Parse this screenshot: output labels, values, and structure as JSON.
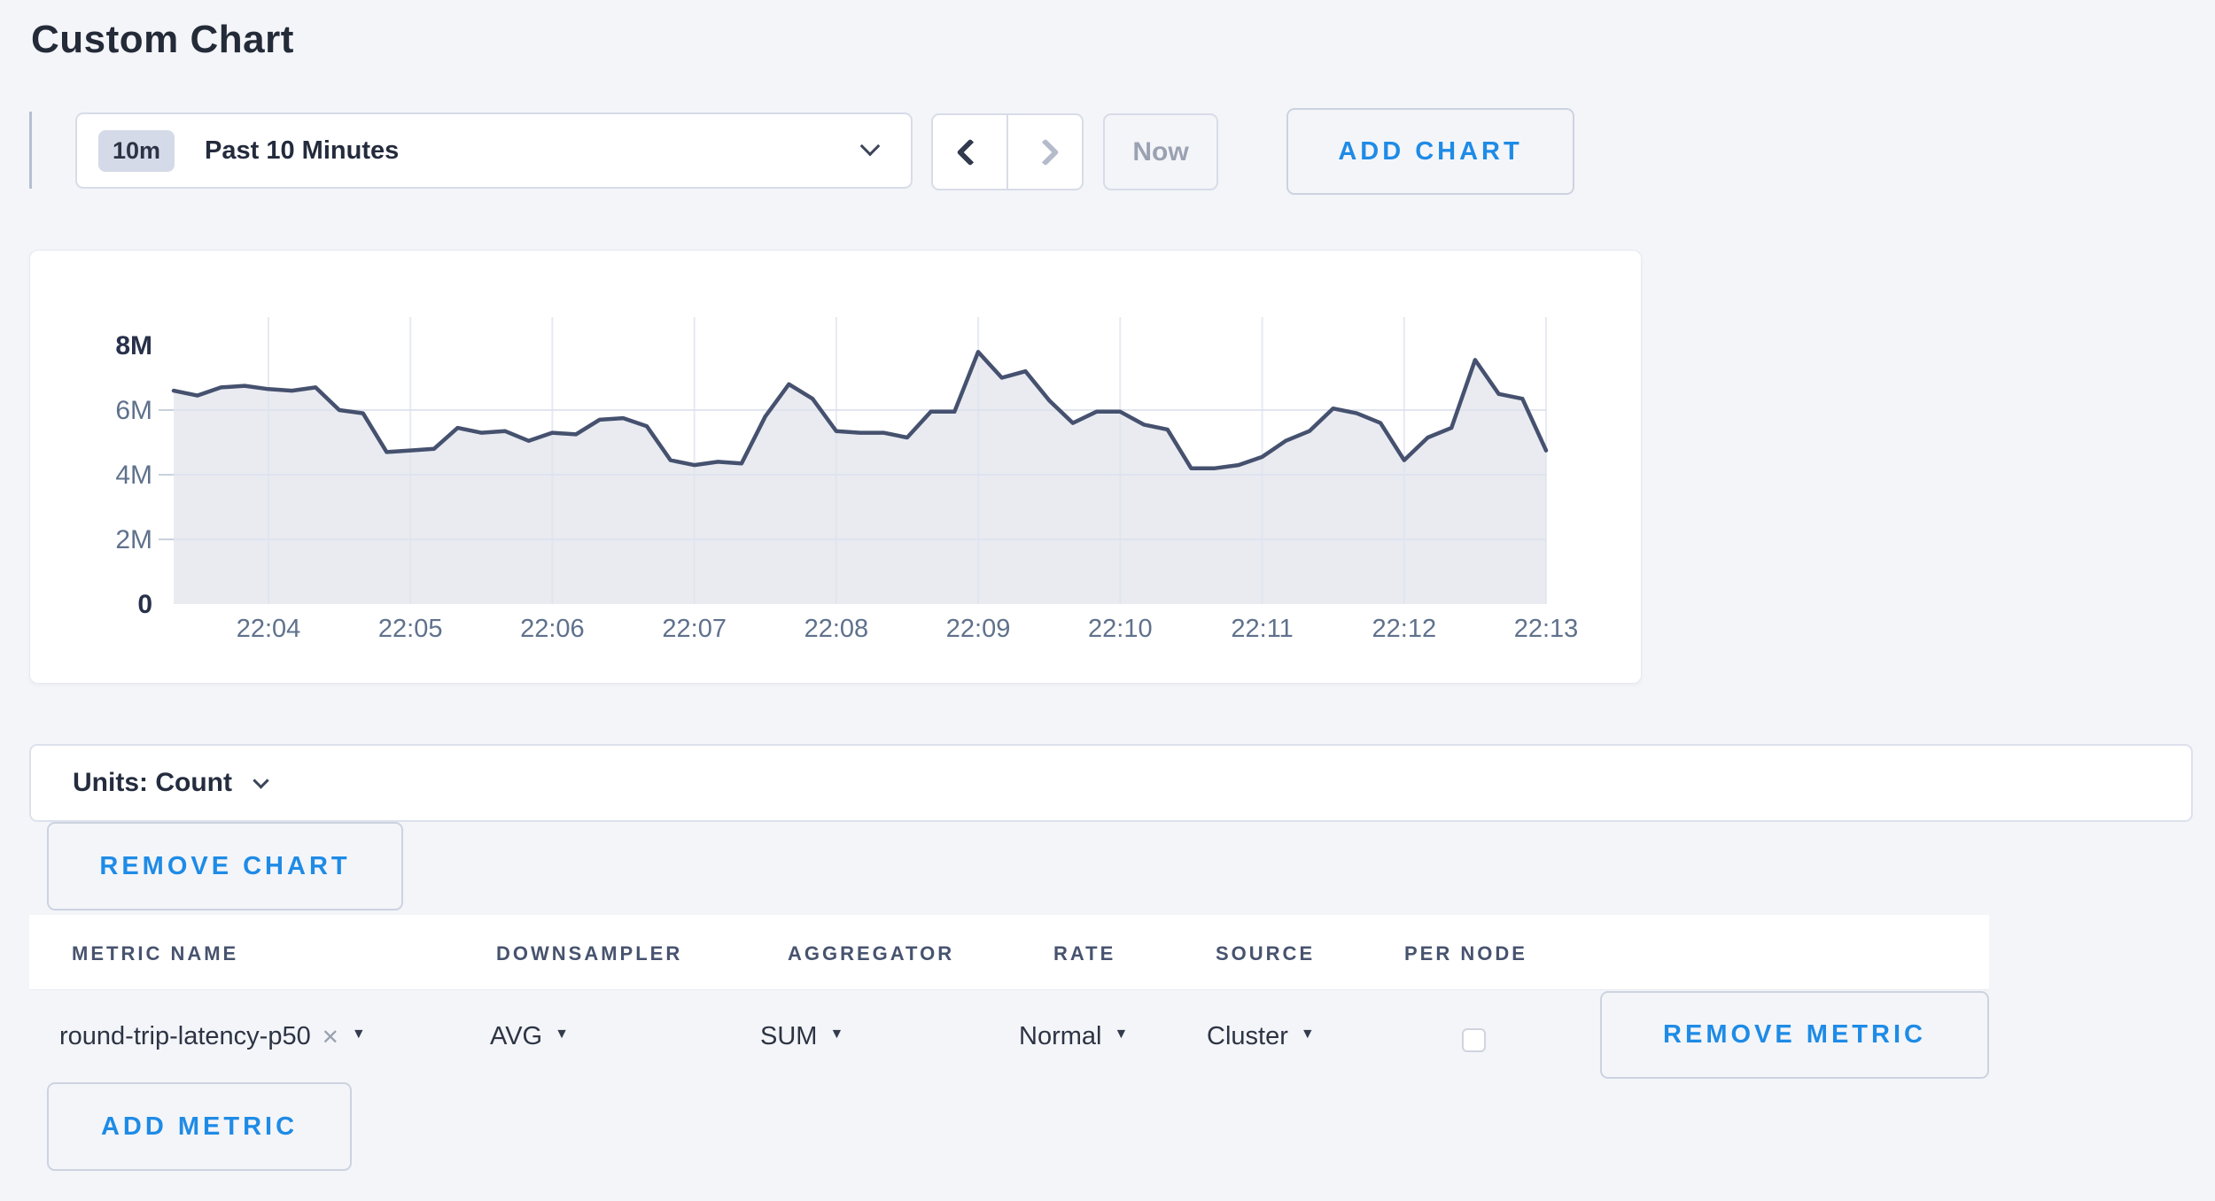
{
  "page": {
    "title": "Custom Chart"
  },
  "toolbar": {
    "time_scale_badge": "10m",
    "time_scale_label": "Past 10 Minutes",
    "dropdown_icon": "chevron-down",
    "prev_icon": "chevron-left",
    "next_icon": "chevron-right",
    "now_label": "Now",
    "add_chart_label": "ADD CHART"
  },
  "units_bar": {
    "label": "Units: Count",
    "dropdown_icon": "chevron-down"
  },
  "chart_actions": {
    "remove_chart_label": "REMOVE CHART",
    "add_metric_label": "ADD METRIC"
  },
  "metrics_table": {
    "headers": [
      "METRIC NAME",
      "DOWNSAMPLER",
      "AGGREGATOR",
      "RATE",
      "SOURCE",
      "PER NODE"
    ],
    "row": {
      "metric_name": "round-trip-latency-p50",
      "close_icon": "✕",
      "caret_icon": "▼",
      "downsampler": "AVG",
      "aggregator": "SUM",
      "rate": "Normal",
      "source": "Cluster",
      "per_node_checked": false,
      "remove_label": "REMOVE METRIC"
    }
  },
  "colors": {
    "page_bg": "#f4f5f9",
    "accent_blue": "#1e8be6",
    "line": "#45516e",
    "fill": "#e9ebf1",
    "grid": "#dee3ee",
    "axis_text": "#5f718c",
    "axis_text_bold": "#28314a"
  },
  "chart_data": {
    "type": "area",
    "title": "",
    "series_name": "round-trip-latency-p50",
    "start_time": "22:03:20",
    "interval_seconds": 10,
    "unit": "count",
    "values_millions": [
      6.6,
      6.45,
      6.7,
      6.75,
      6.65,
      6.6,
      6.7,
      6.0,
      5.9,
      4.7,
      4.75,
      4.8,
      5.45,
      5.3,
      5.35,
      5.05,
      5.3,
      5.25,
      5.7,
      5.75,
      5.5,
      4.45,
      4.3,
      4.4,
      4.35,
      5.8,
      6.8,
      6.35,
      5.35,
      5.3,
      5.3,
      5.15,
      5.95,
      5.95,
      7.8,
      7.0,
      7.2,
      6.3,
      5.6,
      5.95,
      5.95,
      5.55,
      5.4,
      4.2,
      4.2,
      4.3,
      4.55,
      5.05,
      5.35,
      6.05,
      5.9,
      5.6,
      4.45,
      5.15,
      5.45,
      7.55,
      6.5,
      6.35,
      4.75
    ],
    "x_tick_labels": [
      "22:04",
      "22:05",
      "22:06",
      "22:07",
      "22:08",
      "22:09",
      "22:10",
      "22:11",
      "22:12",
      "22:13"
    ],
    "y_tick_labels": [
      "0",
      "2M",
      "4M",
      "6M",
      "8M"
    ],
    "ylim_millions": [
      0,
      8
    ],
    "grid": true,
    "legend": "none",
    "line_color": "#45516e",
    "fill_color": "#e9ebf1"
  }
}
